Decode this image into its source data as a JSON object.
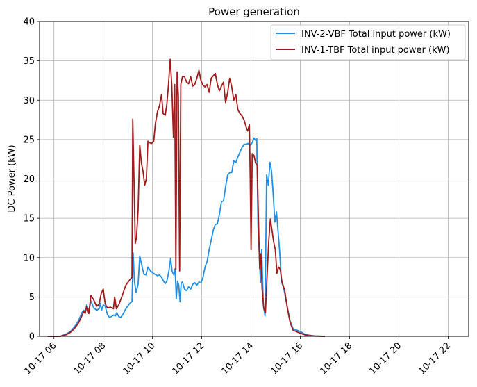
{
  "chart_data": {
    "type": "line",
    "title": "Power generation",
    "xlabel": "",
    "ylabel": "DC Power (kW)",
    "ylim": [
      0,
      40
    ],
    "xlim": [
      "2020-10-17T05:25",
      "2020-10-17T22:50"
    ],
    "yticks": [
      0,
      5,
      10,
      15,
      20,
      25,
      30,
      35,
      40
    ],
    "xticks": [
      {
        "t": "2020-10-17T06:00",
        "label": "10-17 06"
      },
      {
        "t": "2020-10-17T08:00",
        "label": "10-17 08"
      },
      {
        "t": "2020-10-17T10:00",
        "label": "10-17 10"
      },
      {
        "t": "2020-10-17T12:00",
        "label": "10-17 12"
      },
      {
        "t": "2020-10-17T14:00",
        "label": "10-17 14"
      },
      {
        "t": "2020-10-17T16:00",
        "label": "10-17 16"
      },
      {
        "t": "2020-10-17T18:00",
        "label": "10-17 18"
      },
      {
        "t": "2020-10-17T20:00",
        "label": "10-17 20"
      },
      {
        "t": "2020-10-17T22:00",
        "label": "10-17 22"
      }
    ],
    "grid": true,
    "legend_position": "top-right",
    "series": [
      {
        "name": "INV-2-VBF Total input power (kW)",
        "color": "#1e90e8",
        "points": [
          [
            "2020-10-17T05:45",
            0.0
          ],
          [
            "2020-10-17T06:15",
            0.0
          ],
          [
            "2020-10-17T06:30",
            0.3
          ],
          [
            "2020-10-17T06:40",
            0.6
          ],
          [
            "2020-10-17T06:50",
            1.2
          ],
          [
            "2020-10-17T07:00",
            2.0
          ],
          [
            "2020-10-17T07:08",
            3.0
          ],
          [
            "2020-10-17T07:13",
            3.3
          ],
          [
            "2020-10-17T07:16",
            3.0
          ],
          [
            "2020-10-17T07:20",
            4.0
          ],
          [
            "2020-10-17T07:25",
            3.2
          ],
          [
            "2020-10-17T07:30",
            4.5
          ],
          [
            "2020-10-17T07:37",
            3.6
          ],
          [
            "2020-10-17T07:44",
            3.3
          ],
          [
            "2020-10-17T07:50",
            3.5
          ],
          [
            "2020-10-17T07:53",
            4.2
          ],
          [
            "2020-10-17T07:56",
            3.3
          ],
          [
            "2020-10-17T08:00",
            4.0
          ],
          [
            "2020-10-17T08:05",
            3.8
          ],
          [
            "2020-10-17T08:10",
            2.8
          ],
          [
            "2020-10-17T08:15",
            2.4
          ],
          [
            "2020-10-17T08:20",
            2.5
          ],
          [
            "2020-10-17T08:25",
            2.7
          ],
          [
            "2020-10-17T08:30",
            2.6
          ],
          [
            "2020-10-17T08:33",
            3.0
          ],
          [
            "2020-10-17T08:38",
            2.5
          ],
          [
            "2020-10-17T08:43",
            2.4
          ],
          [
            "2020-10-17T08:48",
            2.8
          ],
          [
            "2020-10-17T08:55",
            3.5
          ],
          [
            "2020-10-17T09:05",
            4.2
          ],
          [
            "2020-10-17T09:10",
            4.4
          ],
          [
            "2020-10-17T09:13",
            10.6
          ],
          [
            "2020-10-17T09:16",
            7.0
          ],
          [
            "2020-10-17T09:20",
            5.6
          ],
          [
            "2020-10-17T09:25",
            6.6
          ],
          [
            "2020-10-17T09:29",
            10.2
          ],
          [
            "2020-10-17T09:34",
            9.0
          ],
          [
            "2020-10-17T09:39",
            7.9
          ],
          [
            "2020-10-17T09:44",
            7.8
          ],
          [
            "2020-10-17T09:49",
            8.8
          ],
          [
            "2020-10-17T09:55",
            8.3
          ],
          [
            "2020-10-17T10:00",
            8.1
          ],
          [
            "2020-10-17T10:05",
            7.9
          ],
          [
            "2020-10-17T10:12",
            7.7
          ],
          [
            "2020-10-17T10:17",
            7.8
          ],
          [
            "2020-10-17T10:22",
            7.5
          ],
          [
            "2020-10-17T10:27",
            7.0
          ],
          [
            "2020-10-17T10:31",
            6.7
          ],
          [
            "2020-10-17T10:35",
            7.0
          ],
          [
            "2020-10-17T10:40",
            8.3
          ],
          [
            "2020-10-17T10:44",
            9.9
          ],
          [
            "2020-10-17T10:48",
            8.2
          ],
          [
            "2020-10-17T10:52",
            7.8
          ],
          [
            "2020-10-17T10:55",
            8.6
          ],
          [
            "2020-10-17T10:58",
            4.8
          ],
          [
            "2020-10-17T11:01",
            7.0
          ],
          [
            "2020-10-17T11:04",
            6.5
          ],
          [
            "2020-10-17T11:07",
            4.4
          ],
          [
            "2020-10-17T11:10",
            6.8
          ],
          [
            "2020-10-17T11:13",
            6.9
          ],
          [
            "2020-10-17T11:18",
            6.0
          ],
          [
            "2020-10-17T11:23",
            5.8
          ],
          [
            "2020-10-17T11:28",
            6.3
          ],
          [
            "2020-10-17T11:33",
            6.0
          ],
          [
            "2020-10-17T11:38",
            6.6
          ],
          [
            "2020-10-17T11:43",
            6.8
          ],
          [
            "2020-10-17T11:48",
            6.5
          ],
          [
            "2020-10-17T11:53",
            6.9
          ],
          [
            "2020-10-17T11:58",
            6.8
          ],
          [
            "2020-10-17T12:03",
            7.5
          ],
          [
            "2020-10-17T12:08",
            8.8
          ],
          [
            "2020-10-17T12:13",
            9.5
          ],
          [
            "2020-10-17T12:18",
            11.0
          ],
          [
            "2020-10-17T12:23",
            12.2
          ],
          [
            "2020-10-17T12:28",
            13.5
          ],
          [
            "2020-10-17T12:33",
            14.2
          ],
          [
            "2020-10-17T12:38",
            14.3
          ],
          [
            "2020-10-17T12:43",
            15.5
          ],
          [
            "2020-10-17T12:48",
            17.1
          ],
          [
            "2020-10-17T12:53",
            17.2
          ],
          [
            "2020-10-17T12:58",
            19.0
          ],
          [
            "2020-10-17T13:03",
            20.5
          ],
          [
            "2020-10-17T13:08",
            20.8
          ],
          [
            "2020-10-17T13:13",
            20.8
          ],
          [
            "2020-10-17T13:18",
            22.3
          ],
          [
            "2020-10-17T13:23",
            22.1
          ],
          [
            "2020-10-17T13:28",
            22.8
          ],
          [
            "2020-10-17T13:33",
            23.4
          ],
          [
            "2020-10-17T13:38",
            24.0
          ],
          [
            "2020-10-17T13:43",
            24.4
          ],
          [
            "2020-10-17T13:48",
            24.4
          ],
          [
            "2020-10-17T13:53",
            24.5
          ],
          [
            "2020-10-17T13:58",
            24.3
          ],
          [
            "2020-10-17T14:03",
            24.6
          ],
          [
            "2020-10-17T14:07",
            25.2
          ],
          [
            "2020-10-17T14:11",
            24.9
          ],
          [
            "2020-10-17T14:14",
            25.1
          ],
          [
            "2020-10-17T14:17",
            14.0
          ],
          [
            "2020-10-17T14:20",
            10.5
          ],
          [
            "2020-10-17T14:23",
            6.8
          ],
          [
            "2020-10-17T14:26",
            11.0
          ],
          [
            "2020-10-17T14:30",
            4.0
          ],
          [
            "2020-10-17T14:34",
            2.6
          ],
          [
            "2020-10-17T14:38",
            20.5
          ],
          [
            "2020-10-17T14:42",
            19.2
          ],
          [
            "2020-10-17T14:46",
            22.1
          ],
          [
            "2020-10-17T14:50",
            21.0
          ],
          [
            "2020-10-17T14:54",
            18.0
          ],
          [
            "2020-10-17T14:58",
            14.5
          ],
          [
            "2020-10-17T15:02",
            15.8
          ],
          [
            "2020-10-17T15:06",
            13.2
          ],
          [
            "2020-10-17T15:10",
            10.5
          ],
          [
            "2020-10-17T15:14",
            7.0
          ],
          [
            "2020-10-17T15:20",
            6.0
          ],
          [
            "2020-10-17T15:28",
            3.8
          ],
          [
            "2020-10-17T15:35",
            2.0
          ],
          [
            "2020-10-17T15:42",
            1.0
          ],
          [
            "2020-10-17T15:50",
            0.8
          ],
          [
            "2020-10-17T16:00",
            0.6
          ],
          [
            "2020-10-17T16:10",
            0.3
          ],
          [
            "2020-10-17T16:20",
            0.15
          ],
          [
            "2020-10-17T16:35",
            0.05
          ],
          [
            "2020-10-17T17:00",
            0.0
          ]
        ]
      },
      {
        "name": "INV-1-TBF Total input power (kW)",
        "color": "#a31a1a",
        "points": [
          [
            "2020-10-17T05:45",
            0.0
          ],
          [
            "2020-10-17T06:15",
            0.0
          ],
          [
            "2020-10-17T06:30",
            0.2
          ],
          [
            "2020-10-17T06:40",
            0.5
          ],
          [
            "2020-10-17T06:50",
            1.0
          ],
          [
            "2020-10-17T07:00",
            1.7
          ],
          [
            "2020-10-17T07:08",
            2.6
          ],
          [
            "2020-10-17T07:13",
            3.2
          ],
          [
            "2020-10-17T07:16",
            2.9
          ],
          [
            "2020-10-17T07:20",
            3.8
          ],
          [
            "2020-10-17T07:25",
            2.9
          ],
          [
            "2020-10-17T07:30",
            5.2
          ],
          [
            "2020-10-17T07:37",
            4.6
          ],
          [
            "2020-10-17T07:44",
            3.8
          ],
          [
            "2020-10-17T07:50",
            4.1
          ],
          [
            "2020-10-17T07:55",
            5.4
          ],
          [
            "2020-10-17T08:00",
            6.0
          ],
          [
            "2020-10-17T08:05",
            4.1
          ],
          [
            "2020-10-17T08:10",
            3.6
          ],
          [
            "2020-10-17T08:18",
            3.7
          ],
          [
            "2020-10-17T08:25",
            3.5
          ],
          [
            "2020-10-17T08:28",
            5.0
          ],
          [
            "2020-10-17T08:32",
            3.5
          ],
          [
            "2020-10-17T08:38",
            4.0
          ],
          [
            "2020-10-17T08:45",
            5.0
          ],
          [
            "2020-10-17T08:55",
            6.5
          ],
          [
            "2020-10-17T09:05",
            7.2
          ],
          [
            "2020-10-17T09:10",
            7.5
          ],
          [
            "2020-10-17T09:12",
            27.6
          ],
          [
            "2020-10-17T09:15",
            20.0
          ],
          [
            "2020-10-17T09:18",
            11.8
          ],
          [
            "2020-10-17T09:21",
            12.5
          ],
          [
            "2020-10-17T09:25",
            16.0
          ],
          [
            "2020-10-17T09:29",
            24.3
          ],
          [
            "2020-10-17T09:33",
            22.0
          ],
          [
            "2020-10-17T09:37",
            21.0
          ],
          [
            "2020-10-17T09:41",
            19.2
          ],
          [
            "2020-10-17T09:45",
            20.0
          ],
          [
            "2020-10-17T09:49",
            24.8
          ],
          [
            "2020-10-17T09:53",
            24.6
          ],
          [
            "2020-10-17T09:58",
            24.5
          ],
          [
            "2020-10-17T10:03",
            24.8
          ],
          [
            "2020-10-17T10:07",
            27.0
          ],
          [
            "2020-10-17T10:12",
            28.5
          ],
          [
            "2020-10-17T10:17",
            29.3
          ],
          [
            "2020-10-17T10:22",
            30.7
          ],
          [
            "2020-10-17T10:26",
            28.3
          ],
          [
            "2020-10-17T10:31",
            28.1
          ],
          [
            "2020-10-17T10:35",
            29.5
          ],
          [
            "2020-10-17T10:39",
            32.0
          ],
          [
            "2020-10-17T10:43",
            35.2
          ],
          [
            "2020-10-17T10:47",
            32.0
          ],
          [
            "2020-10-17T10:51",
            25.3
          ],
          [
            "2020-10-17T10:54",
            32.0
          ],
          [
            "2020-10-17T10:57",
            8.5
          ],
          [
            "2020-10-17T11:00",
            33.6
          ],
          [
            "2020-10-17T11:03",
            30.5
          ],
          [
            "2020-10-17T11:06",
            8.3
          ],
          [
            "2020-10-17T11:09",
            32.0
          ],
          [
            "2020-10-17T11:13",
            33.0
          ],
          [
            "2020-10-17T11:18",
            33.0
          ],
          [
            "2020-10-17T11:23",
            32.3
          ],
          [
            "2020-10-17T11:28",
            32.1
          ],
          [
            "2020-10-17T11:33",
            33.0
          ],
          [
            "2020-10-17T11:38",
            31.8
          ],
          [
            "2020-10-17T11:43",
            32.0
          ],
          [
            "2020-10-17T11:48",
            32.8
          ],
          [
            "2020-10-17T11:53",
            33.8
          ],
          [
            "2020-10-17T11:58",
            32.5
          ],
          [
            "2020-10-17T12:03",
            31.9
          ],
          [
            "2020-10-17T12:08",
            31.7
          ],
          [
            "2020-10-17T12:13",
            32.0
          ],
          [
            "2020-10-17T12:18",
            31.0
          ],
          [
            "2020-10-17T12:23",
            32.8
          ],
          [
            "2020-10-17T12:28",
            33.1
          ],
          [
            "2020-10-17T12:33",
            33.4
          ],
          [
            "2020-10-17T12:38",
            32.0
          ],
          [
            "2020-10-17T12:43",
            31.2
          ],
          [
            "2020-10-17T12:48",
            31.8
          ],
          [
            "2020-10-17T12:53",
            32.3
          ],
          [
            "2020-10-17T12:58",
            29.7
          ],
          [
            "2020-10-17T13:03",
            31.0
          ],
          [
            "2020-10-17T13:08",
            32.8
          ],
          [
            "2020-10-17T13:13",
            31.7
          ],
          [
            "2020-10-17T13:18",
            30.0
          ],
          [
            "2020-10-17T13:23",
            30.7
          ],
          [
            "2020-10-17T13:28",
            28.8
          ],
          [
            "2020-10-17T13:33",
            28.3
          ],
          [
            "2020-10-17T13:38",
            28.0
          ],
          [
            "2020-10-17T13:43",
            27.5
          ],
          [
            "2020-10-17T13:48",
            26.6
          ],
          [
            "2020-10-17T13:52",
            26.1
          ],
          [
            "2020-10-17T13:56",
            26.9
          ],
          [
            "2020-10-17T13:58",
            20.0
          ],
          [
            "2020-10-17T14:00",
            11.0
          ],
          [
            "2020-10-17T14:03",
            23.2
          ],
          [
            "2020-10-17T14:07",
            23.0
          ],
          [
            "2020-10-17T14:11",
            22.0
          ],
          [
            "2020-10-17T14:15",
            21.8
          ],
          [
            "2020-10-17T14:18",
            15.0
          ],
          [
            "2020-10-17T14:21",
            8.6
          ],
          [
            "2020-10-17T14:24",
            10.5
          ],
          [
            "2020-10-17T14:27",
            6.0
          ],
          [
            "2020-10-17T14:31",
            3.5
          ],
          [
            "2020-10-17T14:35",
            3.0
          ],
          [
            "2020-10-17T14:39",
            7.5
          ],
          [
            "2020-10-17T14:43",
            12.0
          ],
          [
            "2020-10-17T14:47",
            14.9
          ],
          [
            "2020-10-17T14:51",
            13.5
          ],
          [
            "2020-10-17T14:55",
            12.0
          ],
          [
            "2020-10-17T14:59",
            11.0
          ],
          [
            "2020-10-17T15:03",
            8.0
          ],
          [
            "2020-10-17T15:07",
            8.8
          ],
          [
            "2020-10-17T15:11",
            8.5
          ],
          [
            "2020-10-17T15:15",
            7.0
          ],
          [
            "2020-10-17T15:22",
            5.8
          ],
          [
            "2020-10-17T15:28",
            3.7
          ],
          [
            "2020-10-17T15:35",
            1.8
          ],
          [
            "2020-10-17T15:42",
            0.8
          ],
          [
            "2020-10-17T15:50",
            0.6
          ],
          [
            "2020-10-17T16:00",
            0.4
          ],
          [
            "2020-10-17T16:10",
            0.2
          ],
          [
            "2020-10-17T16:20",
            0.1
          ],
          [
            "2020-10-17T16:35",
            0.03
          ],
          [
            "2020-10-17T17:00",
            0.0
          ]
        ]
      }
    ]
  }
}
